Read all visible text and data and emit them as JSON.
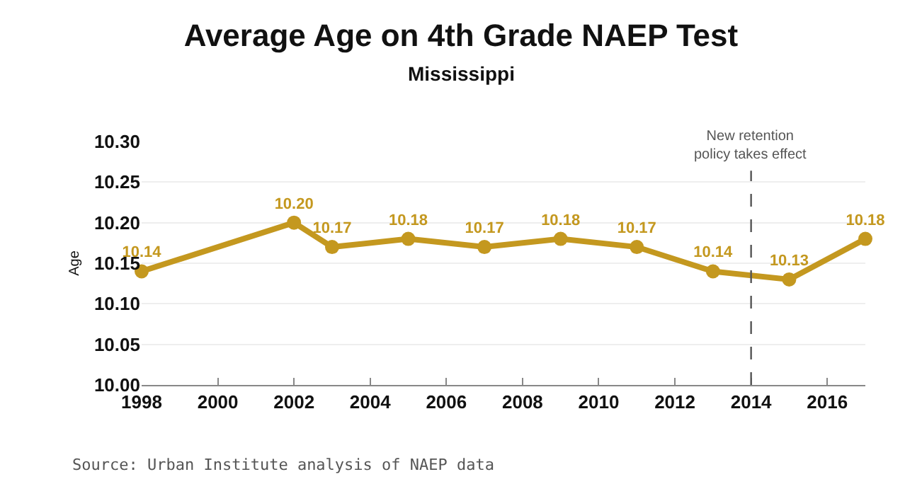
{
  "chart_data": {
    "type": "line",
    "title": "Average Age on 4th Grade NAEP Test",
    "subtitle": "Mississippi",
    "ylabel": "Age",
    "x": [
      1998,
      2002,
      2003,
      2005,
      2007,
      2009,
      2011,
      2013,
      2015,
      2017
    ],
    "series": [
      {
        "color": "#c4981f",
        "values": [
          10.14,
          10.2,
          10.17,
          10.18,
          10.17,
          10.18,
          10.17,
          10.14,
          10.13,
          10.18
        ]
      }
    ],
    "value_labels": [
      "10.14",
      "10.20",
      "10.17",
      "10.18",
      "10.17",
      "10.18",
      "10.17",
      "10.14",
      "10.13",
      "10.18"
    ],
    "marker": "circle",
    "line_style": "solid",
    "grid": "y",
    "xlim": [
      1998,
      2017
    ],
    "xticks": [
      1998,
      2000,
      2002,
      2004,
      2006,
      2008,
      2010,
      2012,
      2014,
      2016
    ],
    "ylim": [
      10.0,
      10.3
    ],
    "yticks": [
      {
        "value": 10.0,
        "label": "10.00"
      },
      {
        "value": 10.05,
        "label": "10.05"
      },
      {
        "value": 10.1,
        "label": "10.10"
      },
      {
        "value": 10.15,
        "label": "10.15"
      },
      {
        "value": 10.2,
        "label": "10.20"
      },
      {
        "value": 10.25,
        "label": "10.25"
      },
      {
        "value": 10.3,
        "label": "10.30"
      }
    ],
    "ref_lines": [
      {
        "axis": "x",
        "value": 2014,
        "label": "New retention policy takes effect",
        "color": "#555555",
        "line_style": "dashed"
      }
    ],
    "annotations": [
      "Source: Urban Institute analysis of NAEP data"
    ]
  }
}
